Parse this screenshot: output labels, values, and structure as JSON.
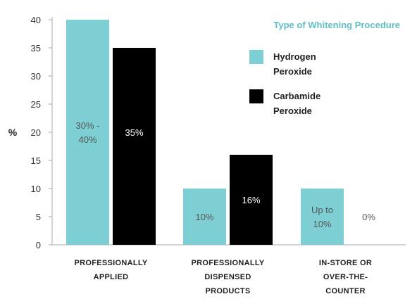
{
  "colors": {
    "hydrogen": "#7ecfd3",
    "carbamide": "#000000",
    "axis": "#a8a8a8",
    "accent": "#5fc0c4",
    "label_on_hydrogen": "#555555",
    "label_on_carbamide": "#ffffff",
    "label_on_white": "#555555"
  },
  "chart_data": {
    "type": "bar",
    "ylabel": "%",
    "ylim": [
      0,
      40
    ],
    "yticks": [
      0,
      5,
      10,
      15,
      20,
      25,
      30,
      35,
      40
    ],
    "ytick_labels": [
      "0",
      "5",
      "10",
      "15",
      "20",
      "25",
      "30",
      "35",
      "40"
    ],
    "grid": false,
    "legend_title": "Type of Whitening Procedure",
    "legend_position": "top-right",
    "categories": [
      [
        "PROFESSIONALLY",
        "APPLIED"
      ],
      [
        "PROFESSIONALLY",
        "DISPENSED",
        "PRODUCTS"
      ],
      [
        "IN-STORE OR",
        "OVER-THE-",
        "COUNTER"
      ]
    ],
    "series": [
      {
        "name": [
          "Hydrogen",
          "Peroxide"
        ],
        "color_key": "hydrogen",
        "values": [
          40,
          10,
          10
        ],
        "data_labels": [
          [
            "30% -",
            "40%"
          ],
          [
            "10%"
          ],
          [
            "Up to",
            "10%"
          ]
        ]
      },
      {
        "name": [
          "Carbamide",
          "Peroxide"
        ],
        "color_key": "carbamide",
        "values": [
          35,
          16,
          0
        ],
        "data_labels": [
          [
            "35%"
          ],
          [
            "16%"
          ],
          [
            "0%"
          ]
        ]
      }
    ]
  }
}
